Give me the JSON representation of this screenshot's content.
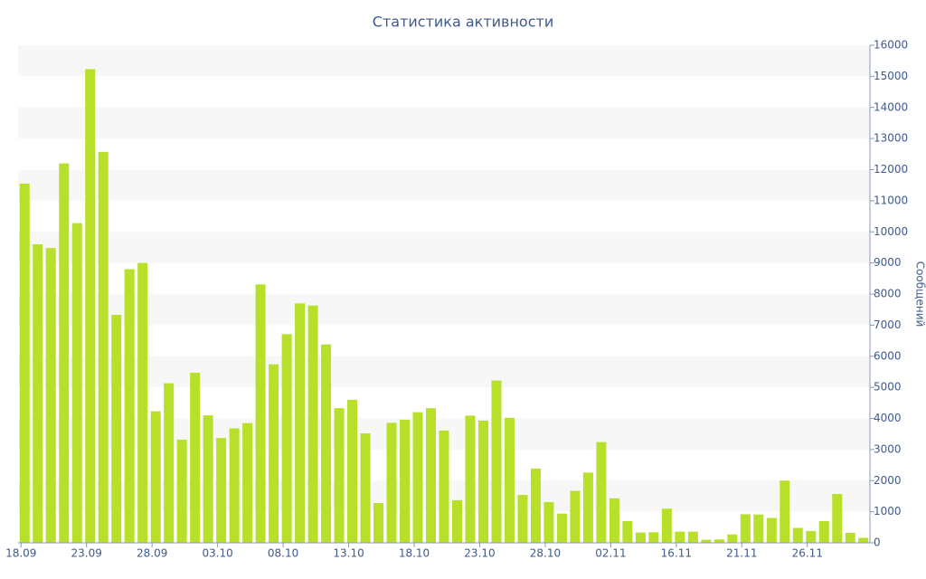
{
  "chart_data": {
    "type": "bar",
    "title": "Статистика активности",
    "y_label": "Сообщений",
    "categories": [
      "18.09",
      null,
      null,
      null,
      null,
      "23.09",
      null,
      null,
      null,
      null,
      "28.09",
      null,
      null,
      null,
      null,
      "03.10",
      null,
      null,
      null,
      null,
      "08.10",
      null,
      null,
      null,
      null,
      "13.10",
      null,
      null,
      null,
      null,
      "18.10",
      null,
      null,
      null,
      null,
      "23.10",
      null,
      null,
      null,
      null,
      "28.10",
      null,
      null,
      null,
      null,
      "02.11",
      null,
      null,
      null,
      null,
      "16.11",
      null,
      null,
      null,
      null,
      "21.11",
      null,
      null,
      null,
      null,
      "26.11",
      null,
      null,
      null,
      null
    ],
    "values": [
      11550,
      9600,
      9480,
      12200,
      10280,
      15230,
      12570,
      7330,
      8800,
      9000,
      4230,
      5130,
      3320,
      5470,
      4100,
      3370,
      3680,
      3850,
      8310,
      5740,
      6710,
      7700,
      7630,
      6380,
      4330,
      4600,
      3520,
      1280,
      3860,
      3960,
      4200,
      4330,
      3610,
      1370,
      4090,
      3930,
      5220,
      4020,
      1540,
      2390,
      1310,
      940,
      1670,
      2260,
      3240,
      1430,
      700,
      330,
      340,
      1100,
      360,
      360,
      100,
      110,
      270,
      920,
      910,
      800,
      2000,
      480,
      380,
      700,
      1570,
      320,
      160
    ],
    "color": "#b8e02a",
    "ylim": [
      0,
      16000
    ],
    "yticks": [
      0,
      1000,
      2000,
      3000,
      4000,
      5000,
      6000,
      7000,
      8000,
      9000,
      10000,
      11000,
      12000,
      13000,
      14000,
      15000,
      16000
    ],
    "y_axis_side": "right",
    "grid": "bands"
  }
}
